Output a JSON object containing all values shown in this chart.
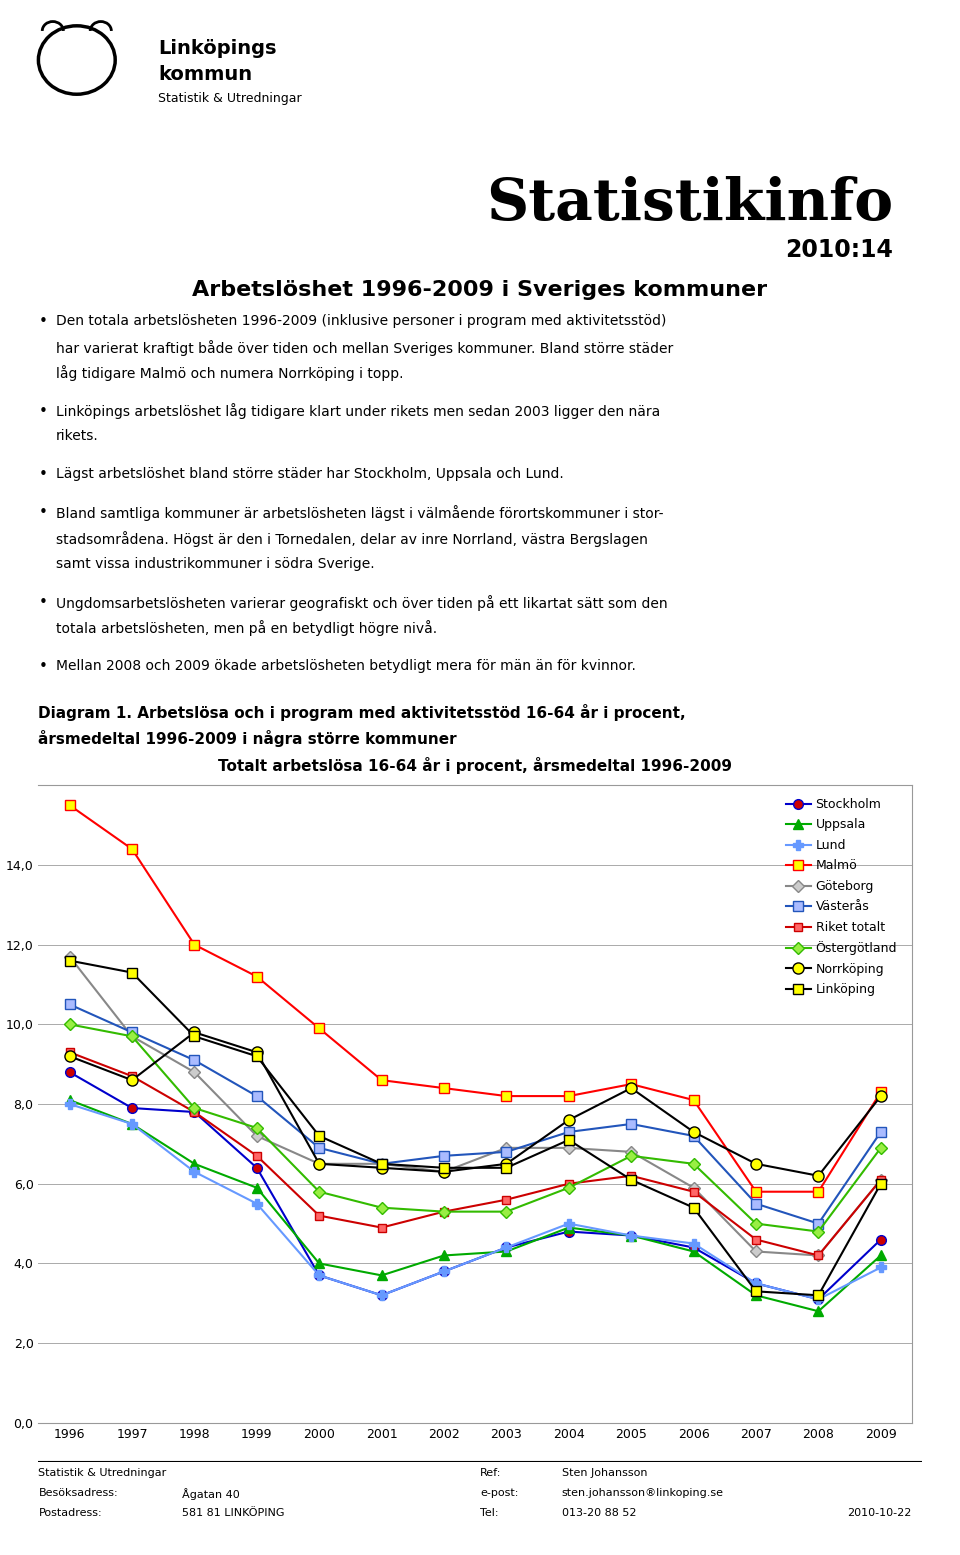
{
  "years": [
    1996,
    1997,
    1998,
    1999,
    2000,
    2001,
    2002,
    2003,
    2004,
    2005,
    2006,
    2007,
    2008,
    2009
  ],
  "series": {
    "Stockholm": {
      "values": [
        8.8,
        7.9,
        7.8,
        6.4,
        3.7,
        3.2,
        3.8,
        4.4,
        4.8,
        4.7,
        4.4,
        3.5,
        3.1,
        4.6
      ],
      "color": "#0000CC",
      "marker": "o",
      "mfc": "#CC0000",
      "mec": "#0000CC",
      "ms": 7,
      "ls": "-",
      "lw": 1.5
    },
    "Uppsala": {
      "values": [
        8.1,
        7.5,
        6.5,
        5.9,
        4.0,
        3.7,
        4.2,
        4.3,
        4.9,
        4.7,
        4.3,
        3.2,
        2.8,
        4.2
      ],
      "color": "#00AA00",
      "marker": "^",
      "mfc": "#00AA00",
      "mec": "#00AA00",
      "ms": 7,
      "ls": "-",
      "lw": 1.5
    },
    "Lund": {
      "values": [
        8.0,
        7.5,
        6.3,
        5.5,
        3.7,
        3.2,
        3.8,
        4.4,
        5.0,
        4.7,
        4.5,
        3.5,
        3.1,
        3.9
      ],
      "color": "#6699FF",
      "marker": "P",
      "mfc": "#6699FF",
      "mec": "#6699FF",
      "ms": 7,
      "ls": "-",
      "lw": 1.5
    },
    "Malmö": {
      "values": [
        15.5,
        14.4,
        12.0,
        11.2,
        9.9,
        8.6,
        8.4,
        8.2,
        8.2,
        8.5,
        8.1,
        5.8,
        5.8,
        8.3
      ],
      "color": "#FF0000",
      "marker": "s",
      "mfc": "#FFFF00",
      "mec": "#FF0000",
      "ms": 7,
      "ls": "-",
      "lw": 1.5
    },
    "Göteborg": {
      "values": [
        11.7,
        9.7,
        8.8,
        7.2,
        6.5,
        6.5,
        6.3,
        6.9,
        6.9,
        6.8,
        5.9,
        4.3,
        4.2,
        6.1
      ],
      "color": "#888888",
      "marker": "D",
      "mfc": "#CCCCCC",
      "mec": "#888888",
      "ms": 6,
      "ls": "-",
      "lw": 1.5
    },
    "Västerås": {
      "values": [
        10.5,
        9.8,
        9.1,
        8.2,
        6.9,
        6.5,
        6.7,
        6.8,
        7.3,
        7.5,
        7.2,
        5.5,
        5.0,
        7.3
      ],
      "color": "#2255BB",
      "marker": "s",
      "mfc": "#AABBFF",
      "mec": "#2255BB",
      "ms": 7,
      "ls": "-",
      "lw": 1.5
    },
    "Riket totalt": {
      "values": [
        9.3,
        8.7,
        7.8,
        6.7,
        5.2,
        4.9,
        5.3,
        5.6,
        6.0,
        6.2,
        5.8,
        4.6,
        4.2,
        6.1
      ],
      "color": "#CC0000",
      "marker": "s",
      "mfc": "#FF6666",
      "mec": "#CC0000",
      "ms": 6,
      "ls": "-",
      "lw": 1.5
    },
    "Östergötland": {
      "values": [
        10.0,
        9.7,
        7.9,
        7.4,
        5.8,
        5.4,
        5.3,
        5.3,
        5.9,
        6.7,
        6.5,
        5.0,
        4.8,
        6.9
      ],
      "color": "#33BB00",
      "marker": "D",
      "mfc": "#99EE44",
      "mec": "#33BB00",
      "ms": 6,
      "ls": "-",
      "lw": 1.5
    },
    "Norrköping": {
      "values": [
        9.2,
        8.6,
        9.8,
        9.3,
        6.5,
        6.4,
        6.3,
        6.5,
        7.6,
        8.4,
        7.3,
        6.5,
        6.2,
        8.2
      ],
      "color": "#000000",
      "marker": "o",
      "mfc": "#FFFF00",
      "mec": "#000000",
      "ms": 8,
      "ls": "-",
      "lw": 1.5
    },
    "Linköping": {
      "values": [
        11.6,
        11.3,
        9.7,
        9.2,
        7.2,
        6.5,
        6.4,
        6.4,
        7.1,
        6.1,
        5.4,
        3.3,
        3.2,
        6.0
      ],
      "color": "#000000",
      "marker": "s",
      "mfc": "#FFFF00",
      "mec": "#000000",
      "ms": 7,
      "ls": "-",
      "lw": 1.5
    }
  },
  "chart_title": "Totalt arbetslösa 16-64 år i procent, årsmedeltal 1996-2009",
  "diagram_label_line1": "Diagram 1. Arbetslösa och i program med aktivitetsstöd 16-64 år i procent,",
  "diagram_label_line2": "årsmedeltal 1996-2009 i några större kommuner",
  "page_title": "Statistikinfo",
  "page_subtitle": "2010:14",
  "section_title": "Arbetslöshet 1996-2009 i Sveriges kommuner",
  "bullet_points_wrapped": [
    [
      "Den totala arbetslösheten 1996-2009 (inklusive personer i program med aktivitetsstöd)",
      "har varierat kraftigt både över tiden och mellan Sveriges kommuner. Bland större städer",
      "låg tidigare Malmö och numera Norrköping i topp."
    ],
    [
      "Linköpings arbetslöshet låg tidigare klart under rikets men sedan 2003 ligger den nära",
      "rikets."
    ],
    [
      "Lägst arbetslöshet bland större städer har Stockholm, Uppsala och Lund."
    ],
    [
      "Bland samtliga kommuner är arbetslösheten lägst i välmående förortskommuner i stor-",
      "stadsområdena. Högst är den i Tornedalen, delar av inre Norrland, västra Bergslagen",
      "samt vissa industrikommuner i södra Sverige."
    ],
    [
      "Ungdomsarbetslösheten varierar geografiskt och över tiden på ett likartat sätt som den",
      "totala arbetslösheten, men på en betydligt högre nivå."
    ],
    [
      "Mellan 2008 och 2009 ökade arbetslösheten betydligt mera för män än för kvinnor."
    ]
  ],
  "footer": {
    "left_col1": "Statistik & Utredningar",
    "left_col2": "Besöksadress:",
    "left_col3": "Postadress:",
    "left_val2": "Ågatan 40",
    "left_val3": "581 81 LINKÖPING",
    "right_col1": "Ref:",
    "right_col2": "e-post:",
    "right_col3": "Tel:",
    "right_val1": "Sten Johansson",
    "right_val2": "sten.johanssonälinkoping.se",
    "right_val3": "013-20 88 52",
    "date": "2010-10-22"
  },
  "ylim": [
    0,
    16
  ],
  "yticks": [
    0.0,
    2.0,
    4.0,
    6.0,
    8.0,
    10.0,
    12.0,
    14.0
  ],
  "background_color": "#FFFFFF",
  "org_line1": "Linköpings",
  "org_line2": "kommun",
  "org_line3": "Statistik & Utredningar"
}
